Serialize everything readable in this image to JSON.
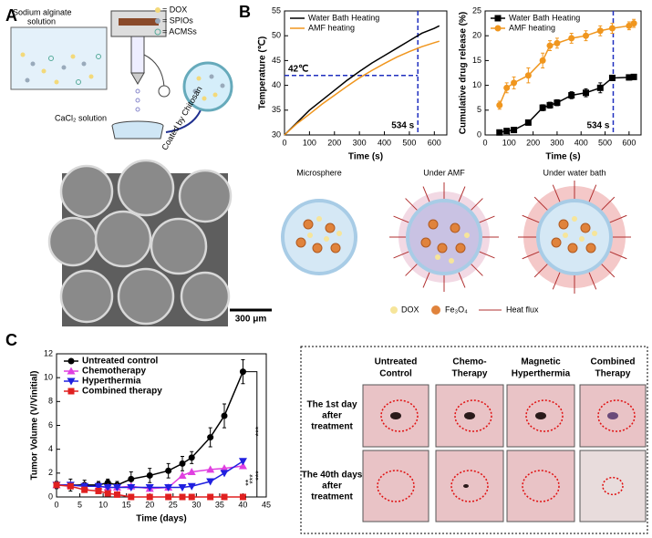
{
  "panel_labels": [
    "A",
    "B",
    "C"
  ],
  "schematic": {
    "solution_label": [
      "Sodium alginate",
      "solution"
    ],
    "legend": [
      "= DOX",
      "= SPIOs",
      "= ACMSs"
    ],
    "bath_label": "CaCl₂ solution",
    "arrow_label": "Coated by Chitosan"
  },
  "micrograph": {
    "scale_bar": "300 μm"
  },
  "mechanism": {
    "titles": [
      "Microsphere",
      "Under AMF",
      "Under water bath"
    ],
    "legend": [
      "DOX",
      "Fe₃O₄",
      "Heat flux"
    ]
  },
  "photo_grid": {
    "columns": [
      [
        "Untreated",
        "Control"
      ],
      [
        "Chemo-",
        "Therapy"
      ],
      [
        "Magnetic",
        "Hyperthermia"
      ],
      [
        "Combined",
        "Therapy"
      ]
    ],
    "rows": [
      [
        "The 1st day",
        "after",
        "treatment"
      ],
      [
        "The 40th days",
        "after",
        "treatment"
      ]
    ]
  },
  "chart_data": [
    {
      "type": "line",
      "xlabel": "Time (s)",
      "ylabel": "Temperature (℃)",
      "x": [
        0,
        50,
        100,
        150,
        200,
        250,
        300,
        350,
        400,
        450,
        500,
        550,
        600,
        620
      ],
      "xlim": [
        0,
        650
      ],
      "xticks": [
        0,
        100,
        200,
        300,
        400,
        500,
        600
      ],
      "ylim": [
        30,
        55
      ],
      "yticks": [
        30,
        35,
        40,
        45,
        50,
        55
      ],
      "legend": "upper left",
      "reference_lines": [
        {
          "axis": "y",
          "value": 42,
          "label": "42℃",
          "color": "#1f2fbf"
        },
        {
          "axis": "x",
          "value": 534,
          "label": "534 s",
          "color": "#1f2fbf"
        }
      ],
      "series": [
        {
          "name": "Water Bath Heating",
          "color": "#000000",
          "values": [
            30,
            32.5,
            35,
            37,
            39,
            41,
            42.8,
            44.5,
            46,
            47.5,
            49,
            50.5,
            51.5,
            52
          ]
        },
        {
          "name": "AMF heating",
          "color": "#f0961e",
          "values": [
            30,
            32.3,
            34.2,
            36.2,
            38,
            39.8,
            41.5,
            43,
            44.4,
            45.7,
            46.8,
            47.8,
            48.6,
            48.9
          ]
        }
      ]
    },
    {
      "type": "line",
      "xlabel": "Time (s)",
      "ylabel": "Cumulative drug release (%)",
      "x": [
        60,
        90,
        120,
        180,
        240,
        270,
        300,
        360,
        420,
        480,
        530,
        600,
        620
      ],
      "xlim": [
        0,
        650
      ],
      "xticks": [
        0,
        100,
        200,
        300,
        400,
        500,
        600
      ],
      "ylim": [
        0,
        25
      ],
      "yticks": [
        0,
        5,
        10,
        15,
        20,
        25
      ],
      "legend": "upper left",
      "reference_lines": [
        {
          "axis": "x",
          "value": 534,
          "label": "534 s",
          "color": "#1f2fbf"
        }
      ],
      "series": [
        {
          "name": "Water Bath Heating",
          "color": "#000000",
          "marker": "square",
          "values": [
            0.5,
            0.8,
            1,
            2.5,
            5.5,
            6,
            6.5,
            8,
            8.5,
            9.5,
            11.5,
            11.6,
            11.7
          ],
          "errors": [
            0.3,
            0.3,
            0.4,
            0.5,
            0.6,
            0.6,
            0.6,
            0.7,
            0.8,
            1,
            0.5,
            0.5,
            0.5
          ]
        },
        {
          "name": "AMF heating",
          "color": "#f0961e",
          "marker": "circle",
          "values": [
            6,
            9.5,
            10.5,
            12,
            15,
            18,
            18.5,
            19.5,
            20,
            21,
            21.5,
            22,
            22.5
          ],
          "errors": [
            0.8,
            1,
            1.2,
            1.5,
            1.5,
            1,
            1,
            1,
            1,
            1,
            1,
            0.8,
            0.8
          ]
        }
      ]
    },
    {
      "type": "line",
      "xlabel": "Time (days)",
      "ylabel": "Tumor Volume (V/Vinitial)",
      "x": [
        0,
        3,
        6,
        9,
        11,
        13,
        16,
        20,
        24,
        27,
        29,
        33,
        36,
        40
      ],
      "xlim": [
        0,
        45
      ],
      "xticks": [
        0,
        5,
        10,
        15,
        20,
        25,
        30,
        35,
        40,
        45
      ],
      "ylim": [
        0,
        12
      ],
      "yticks": [
        0,
        2,
        4,
        6,
        8,
        10,
        12
      ],
      "legend": "upper left",
      "significance": [
        "***",
        "**",
        "***",
        "***"
      ],
      "series": [
        {
          "name": "Untreated control",
          "color": "#000000",
          "marker": "circle",
          "values": [
            1,
            1,
            1,
            1,
            1.2,
            1,
            1.5,
            1.8,
            2.2,
            2.8,
            3.3,
            5,
            6.8,
            10.5
          ],
          "errors": [
            0.3,
            0.5,
            0.4,
            0.3,
            0.3,
            0.3,
            0.6,
            0.6,
            0.6,
            0.6,
            0.5,
            0.8,
            1,
            1
          ]
        },
        {
          "name": "Chemotherapy",
          "color": "#e040e0",
          "marker": "triangle-up",
          "values": [
            1,
            1,
            0.9,
            0.9,
            0.8,
            0.8,
            0.9,
            0.7,
            0.8,
            1.8,
            2.1,
            2.3,
            2.4,
            2.6
          ]
        },
        {
          "name": "Hyperthermia",
          "color": "#2020e0",
          "marker": "triangle-down",
          "values": [
            1,
            1,
            0.9,
            0.9,
            0.8,
            0.8,
            0.8,
            0.8,
            0.8,
            0.8,
            0.9,
            1.3,
            2,
            3
          ]
        },
        {
          "name": "Combined therapy",
          "color": "#e02020",
          "marker": "square",
          "values": [
            1,
            0.9,
            0.6,
            0.5,
            0.3,
            0.2,
            0,
            0,
            0,
            0,
            0,
            0,
            0,
            0
          ]
        }
      ]
    }
  ]
}
